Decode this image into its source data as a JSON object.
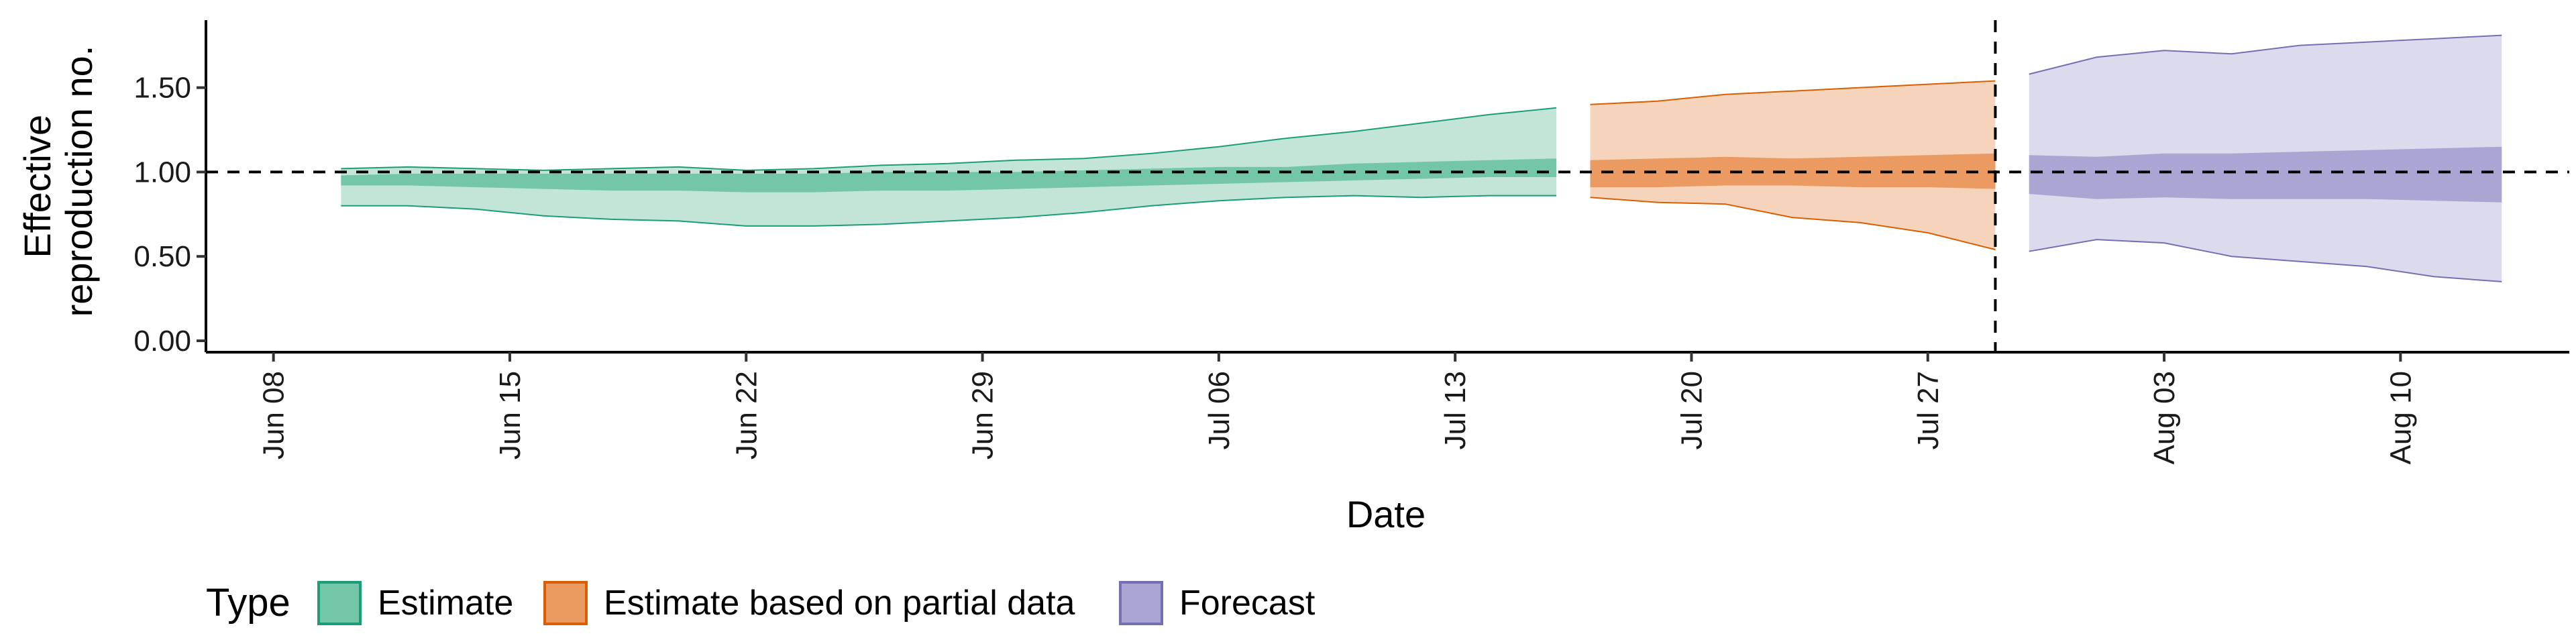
{
  "chart_data": {
    "type": "area",
    "xlabel": "Date",
    "ylabel_lines": [
      "Effective",
      "reproduction no."
    ],
    "ylim": [
      0,
      1.9
    ],
    "xlim": [
      "2020-06-06",
      "2020-08-15"
    ],
    "y_ticks": [
      {
        "value": 0.0,
        "label": "0.00"
      },
      {
        "value": 0.5,
        "label": "0.50"
      },
      {
        "value": 1.0,
        "label": "1.00"
      },
      {
        "value": 1.5,
        "label": "1.50"
      }
    ],
    "x_ticks": [
      {
        "value": "2020-06-08",
        "label": "Jun 08"
      },
      {
        "value": "2020-06-15",
        "label": "Jun 15"
      },
      {
        "value": "2020-06-22",
        "label": "Jun 22"
      },
      {
        "value": "2020-06-29",
        "label": "Jun 29"
      },
      {
        "value": "2020-07-06",
        "label": "Jul 06"
      },
      {
        "value": "2020-07-13",
        "label": "Jul 13"
      },
      {
        "value": "2020-07-20",
        "label": "Jul 20"
      },
      {
        "value": "2020-07-27",
        "label": "Jul 27"
      },
      {
        "value": "2020-08-03",
        "label": "Aug 03"
      },
      {
        "value": "2020-08-10",
        "label": "Aug 10"
      }
    ],
    "reference_hline": 1.0,
    "reference_vline": "2020-07-29",
    "legend": {
      "title": "Type",
      "position": "bottom-left",
      "items": [
        {
          "label": "Estimate",
          "fill": "#74c6a9",
          "stroke": "#1b9e77"
        },
        {
          "label": "Estimate based on partial data",
          "fill": "#eb9a62",
          "stroke": "#d95f02"
        },
        {
          "label": "Forecast",
          "fill": "#a9a6d3",
          "stroke": "#7570b3"
        }
      ]
    },
    "series": [
      {
        "name": "Estimate",
        "color": "#1b9e77",
        "outer_fill": "#c2e5d8",
        "inner_fill": "#74c6a9",
        "x": [
          "2020-06-10",
          "2020-06-12",
          "2020-06-14",
          "2020-06-16",
          "2020-06-18",
          "2020-06-20",
          "2020-06-22",
          "2020-06-24",
          "2020-06-26",
          "2020-06-28",
          "2020-06-30",
          "2020-07-02",
          "2020-07-04",
          "2020-07-06",
          "2020-07-08",
          "2020-07-10",
          "2020-07-12",
          "2020-07-14",
          "2020-07-16"
        ],
        "outer_lower": [
          0.8,
          0.8,
          0.78,
          0.74,
          0.72,
          0.71,
          0.68,
          0.68,
          0.69,
          0.71,
          0.73,
          0.76,
          0.8,
          0.83,
          0.85,
          0.86,
          0.85,
          0.86,
          0.86
        ],
        "inner_lower": [
          0.92,
          0.92,
          0.91,
          0.9,
          0.89,
          0.89,
          0.88,
          0.88,
          0.89,
          0.89,
          0.9,
          0.91,
          0.92,
          0.93,
          0.94,
          0.95,
          0.96,
          0.97,
          0.97
        ],
        "inner_upper": [
          0.98,
          0.99,
          0.99,
          0.99,
          0.99,
          0.99,
          0.99,
          0.99,
          1.0,
          1.0,
          1.0,
          1.01,
          1.02,
          1.03,
          1.03,
          1.05,
          1.06,
          1.07,
          1.08
        ],
        "outer_upper": [
          1.02,
          1.03,
          1.02,
          1.01,
          1.02,
          1.03,
          1.01,
          1.02,
          1.04,
          1.05,
          1.07,
          1.08,
          1.11,
          1.15,
          1.2,
          1.24,
          1.29,
          1.34,
          1.38
        ]
      },
      {
        "name": "Estimate based on partial data",
        "color": "#d95f02",
        "outer_fill": "#f6d4bb",
        "inner_fill": "#eb9a62",
        "x": [
          "2020-07-17",
          "2020-07-19",
          "2020-07-21",
          "2020-07-23",
          "2020-07-25",
          "2020-07-27",
          "2020-07-29"
        ],
        "outer_lower": [
          0.85,
          0.82,
          0.81,
          0.73,
          0.7,
          0.64,
          0.54
        ],
        "inner_lower": [
          0.91,
          0.91,
          0.92,
          0.92,
          0.91,
          0.91,
          0.9
        ],
        "inner_upper": [
          1.07,
          1.08,
          1.09,
          1.08,
          1.09,
          1.1,
          1.11
        ],
        "outer_upper": [
          1.4,
          1.42,
          1.46,
          1.48,
          1.5,
          1.52,
          1.54
        ]
      },
      {
        "name": "Forecast",
        "color": "#7570b3",
        "outer_fill": "#dcdaed",
        "inner_fill": "#a9a6d3",
        "x": [
          "2020-07-30",
          "2020-08-01",
          "2020-08-03",
          "2020-08-05",
          "2020-08-07",
          "2020-08-09",
          "2020-08-11",
          "2020-08-13"
        ],
        "outer_lower": [
          0.53,
          0.6,
          0.58,
          0.5,
          0.47,
          0.44,
          0.38,
          0.35
        ],
        "inner_lower": [
          0.87,
          0.84,
          0.85,
          0.84,
          0.84,
          0.84,
          0.83,
          0.82
        ],
        "inner_upper": [
          1.1,
          1.09,
          1.11,
          1.11,
          1.12,
          1.13,
          1.14,
          1.15
        ],
        "outer_upper": [
          1.58,
          1.68,
          1.72,
          1.7,
          1.75,
          1.77,
          1.79,
          1.81
        ]
      }
    ]
  }
}
